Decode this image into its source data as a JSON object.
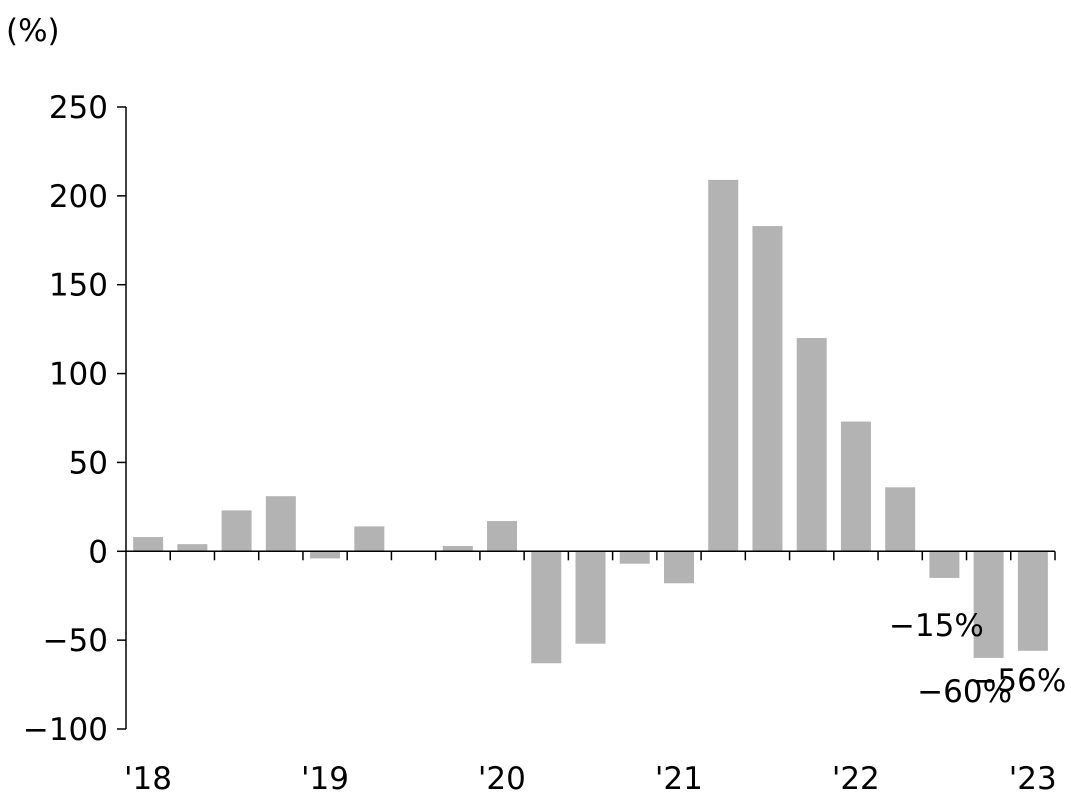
{
  "chart_data": {
    "type": "bar",
    "unit_label": "(%)",
    "y_ticks": [
      250,
      200,
      150,
      100,
      50,
      0,
      -50,
      -100
    ],
    "y_tick_labels": [
      "250",
      "200",
      "150",
      "100",
      "50",
      "0",
      "-50",
      "-100"
    ],
    "ylim": [
      -100,
      250
    ],
    "x_period_labels": [
      "'18",
      "'19",
      "'20",
      "'21",
      "'22",
      "'23"
    ],
    "bar_color": "#b3b3b3",
    "axis_color": "#000000",
    "grid": false,
    "values": [
      8,
      4,
      23,
      31,
      -4,
      14,
      0,
      3,
      17,
      -63,
      -52,
      -7,
      -18,
      209,
      183,
      120,
      73,
      36,
      -15,
      -60,
      -56
    ],
    "annotations": [
      {
        "index": 18,
        "text": "-15%"
      },
      {
        "index": 19,
        "text": "-60%"
      },
      {
        "index": 20,
        "text": "-56%"
      }
    ]
  }
}
